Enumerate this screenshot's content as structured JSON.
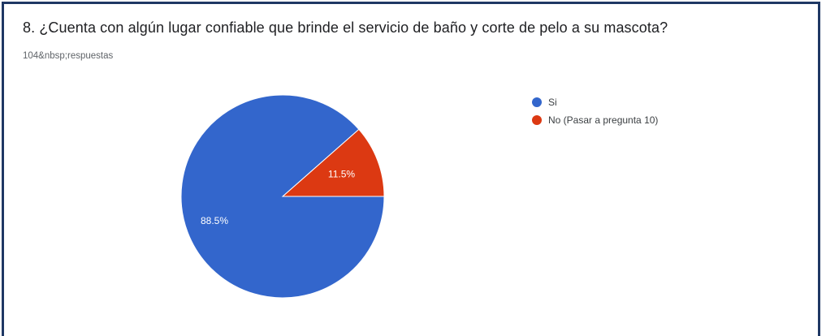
{
  "question": {
    "title": "8. ¿Cuenta con algún lugar confiable que brinde el servicio de baño y corte de pelo a su mascota?",
    "responses": "104&nbsp;respuestas"
  },
  "chart_data": {
    "type": "pie",
    "title": "8. ¿Cuenta con algún lugar confiable que brinde el servicio de baño y corte de pelo a su mascota?",
    "subtitle": "104&nbsp;respuestas",
    "categories": [
      "Si",
      "No (Pasar a pregunta 10)"
    ],
    "values": [
      88.5,
      11.5
    ],
    "labels": [
      "88.5%",
      "11.5%"
    ],
    "colors": [
      "#3366cc",
      "#dc3912"
    ],
    "legend_position": "right"
  }
}
